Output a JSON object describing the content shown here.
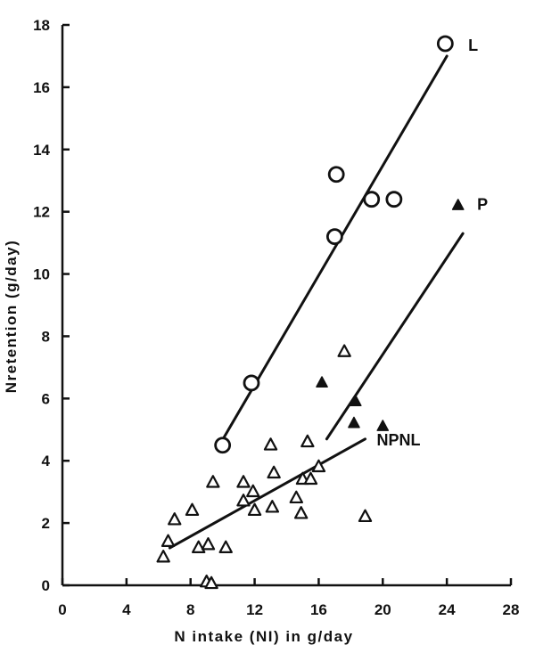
{
  "chart_data": {
    "type": "scatter",
    "xlabel": "N intake (NI) in g/day",
    "ylabel": "Nretention (g/day)",
    "xlim": [
      0,
      28
    ],
    "ylim": [
      0,
      18
    ],
    "xticks": [
      0,
      4,
      8,
      12,
      16,
      20,
      24,
      28
    ],
    "yticks": [
      0,
      2,
      4,
      6,
      8,
      10,
      12,
      14,
      16,
      18
    ],
    "grid": false,
    "series": [
      {
        "name": "L",
        "marker": "open-circle",
        "points": [
          {
            "x": 10.0,
            "y": 4.5
          },
          {
            "x": 11.8,
            "y": 6.5
          },
          {
            "x": 17.0,
            "y": 11.2
          },
          {
            "x": 17.1,
            "y": 13.2
          },
          {
            "x": 19.3,
            "y": 12.4
          },
          {
            "x": 20.7,
            "y": 12.4
          },
          {
            "x": 23.9,
            "y": 17.4
          }
        ],
        "fit_line": {
          "x": [
            9.8,
            24.0
          ],
          "y": [
            4.5,
            17.0
          ]
        }
      },
      {
        "name": "P",
        "marker": "filled-triangle",
        "points": [
          {
            "x": 16.2,
            "y": 6.5
          },
          {
            "x": 18.3,
            "y": 5.9
          },
          {
            "x": 18.2,
            "y": 5.2
          },
          {
            "x": 20.0,
            "y": 5.1
          },
          {
            "x": 24.7,
            "y": 12.2
          }
        ],
        "fit_line": {
          "x": [
            16.5,
            25.0
          ],
          "y": [
            4.7,
            11.3
          ]
        }
      },
      {
        "name": "NPNL",
        "marker": "open-triangle",
        "points": [
          {
            "x": 6.3,
            "y": 0.9
          },
          {
            "x": 6.6,
            "y": 1.4
          },
          {
            "x": 7.0,
            "y": 2.1
          },
          {
            "x": 8.1,
            "y": 2.4
          },
          {
            "x": 8.5,
            "y": 1.2
          },
          {
            "x": 9.1,
            "y": 1.3
          },
          {
            "x": 9.0,
            "y": 0.1
          },
          {
            "x": 9.3,
            "y": 0.05
          },
          {
            "x": 9.4,
            "y": 3.3
          },
          {
            "x": 10.2,
            "y": 1.2
          },
          {
            "x": 11.3,
            "y": 2.7
          },
          {
            "x": 11.3,
            "y": 3.3
          },
          {
            "x": 11.9,
            "y": 3.0
          },
          {
            "x": 12.0,
            "y": 2.4
          },
          {
            "x": 13.0,
            "y": 4.5
          },
          {
            "x": 13.2,
            "y": 3.6
          },
          {
            "x": 13.1,
            "y": 2.5
          },
          {
            "x": 14.6,
            "y": 2.8
          },
          {
            "x": 14.9,
            "y": 2.3
          },
          {
            "x": 15.0,
            "y": 3.4
          },
          {
            "x": 15.3,
            "y": 4.6
          },
          {
            "x": 15.5,
            "y": 3.4
          },
          {
            "x": 16.0,
            "y": 3.8
          },
          {
            "x": 17.6,
            "y": 7.5
          },
          {
            "x": 18.9,
            "y": 2.2
          }
        ],
        "fit_line": {
          "x": [
            6.7,
            18.9
          ],
          "y": [
            1.2,
            4.7
          ]
        }
      }
    ]
  }
}
